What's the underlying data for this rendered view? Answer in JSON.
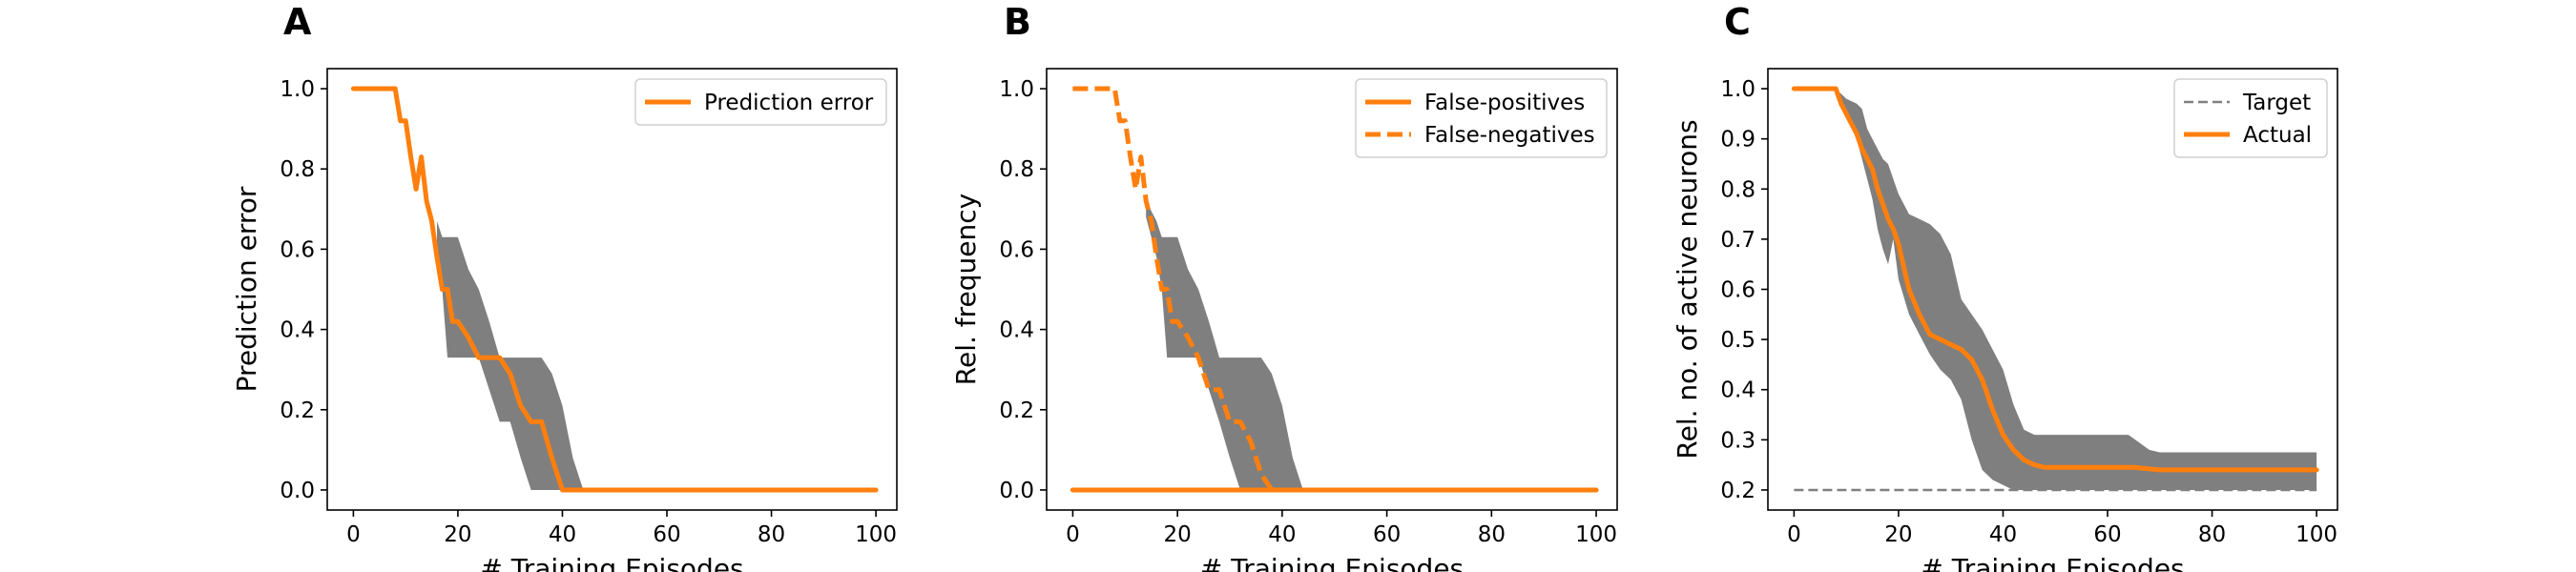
{
  "colors": {
    "accent": "#ff7f0e",
    "band": "#7f7f7f",
    "target": "#808080",
    "axis": "#000000"
  },
  "chart_data": [
    {
      "type": "line",
      "panel": "A",
      "xlabel": "# Training Episodes",
      "ylabel": "Prediction error",
      "xlim": [
        -5,
        104
      ],
      "ylim": [
        -0.05,
        1.05
      ],
      "xticks": [
        "0",
        "20",
        "40",
        "60",
        "80",
        "100"
      ],
      "yticks": [
        "0.0",
        "0.2",
        "0.4",
        "0.6",
        "0.8",
        "1.0"
      ],
      "legend": "top-right",
      "series": [
        {
          "name": "Prediction error",
          "style": "solid",
          "color": "#ff7f0e",
          "x": [
            0,
            8,
            9,
            10,
            11,
            12,
            13,
            14,
            15,
            16,
            17,
            18,
            19,
            20,
            22,
            24,
            26,
            28,
            30,
            32,
            34,
            36,
            38,
            40,
            100
          ],
          "y": [
            1.0,
            1.0,
            0.92,
            0.92,
            0.83,
            0.75,
            0.83,
            0.72,
            0.67,
            0.58,
            0.5,
            0.5,
            0.42,
            0.42,
            0.38,
            0.33,
            0.33,
            0.33,
            0.29,
            0.21,
            0.17,
            0.17,
            0.08,
            0.0,
            0.0
          ]
        }
      ],
      "band": {
        "x": [
          16,
          17,
          18,
          20,
          22,
          24,
          26,
          28,
          30,
          32,
          34,
          36,
          38,
          40,
          42,
          44
        ],
        "upper": [
          0.67,
          0.63,
          0.63,
          0.63,
          0.55,
          0.5,
          0.42,
          0.33,
          0.33,
          0.33,
          0.33,
          0.33,
          0.29,
          0.21,
          0.08,
          0.0
        ],
        "lower": [
          0.58,
          0.5,
          0.33,
          0.33,
          0.33,
          0.33,
          0.25,
          0.17,
          0.17,
          0.08,
          0.0,
          0.0,
          0.0,
          0.0,
          0.0,
          0.0
        ]
      }
    },
    {
      "type": "line",
      "panel": "B",
      "xlabel": "# Training Episodes",
      "ylabel": "Rel. frequency",
      "xlim": [
        -5,
        104
      ],
      "ylim": [
        -0.05,
        1.05
      ],
      "xticks": [
        "0",
        "20",
        "40",
        "60",
        "80",
        "100"
      ],
      "yticks": [
        "0.0",
        "0.2",
        "0.4",
        "0.6",
        "0.8",
        "1.0"
      ],
      "legend": "top-right",
      "series": [
        {
          "name": "False-positives",
          "style": "solid",
          "color": "#ff7f0e",
          "x": [
            0,
            100
          ],
          "y": [
            0.0,
            0.0
          ]
        },
        {
          "name": "False-negatives",
          "style": "dashed",
          "color": "#ff7f0e",
          "x": [
            0,
            7,
            8,
            9,
            10,
            11,
            12,
            13,
            14,
            15,
            16,
            17,
            18,
            19,
            20,
            22,
            24,
            26,
            28,
            30,
            32,
            34,
            36,
            38,
            40,
            100
          ],
          "y": [
            1.0,
            1.0,
            1.0,
            0.92,
            0.92,
            0.83,
            0.75,
            0.83,
            0.72,
            0.67,
            0.58,
            0.5,
            0.5,
            0.42,
            0.42,
            0.38,
            0.33,
            0.25,
            0.25,
            0.17,
            0.17,
            0.12,
            0.04,
            0.0,
            0.0,
            0.0
          ]
        }
      ],
      "band": {
        "x": [
          14,
          16,
          17,
          18,
          20,
          22,
          24,
          26,
          28,
          30,
          32,
          34,
          36,
          38,
          40,
          42,
          44
        ],
        "upper": [
          0.72,
          0.67,
          0.63,
          0.63,
          0.63,
          0.55,
          0.5,
          0.42,
          0.33,
          0.33,
          0.33,
          0.33,
          0.33,
          0.29,
          0.21,
          0.08,
          0.0
        ],
        "lower": [
          0.68,
          0.58,
          0.5,
          0.33,
          0.33,
          0.33,
          0.33,
          0.25,
          0.17,
          0.08,
          0.0,
          0.0,
          0.0,
          0.0,
          0.0,
          0.0,
          0.0
        ]
      }
    },
    {
      "type": "line",
      "panel": "C",
      "xlabel": "# Training Episodes",
      "ylabel": "Rel. no. of active neurons",
      "xlim": [
        -5,
        104
      ],
      "ylim": [
        0.16,
        1.04
      ],
      "xticks": [
        "0",
        "20",
        "40",
        "60",
        "80",
        "100"
      ],
      "yticks": [
        "0.2",
        "0.3",
        "0.4",
        "0.5",
        "0.6",
        "0.7",
        "0.8",
        "0.9",
        "1.0"
      ],
      "legend": "top-right",
      "series": [
        {
          "name": "Target",
          "style": "dashed-thin",
          "color": "#808080",
          "x": [
            0,
            100
          ],
          "y": [
            0.2,
            0.2
          ]
        },
        {
          "name": "Actual",
          "style": "solid",
          "color": "#ff7f0e",
          "x": [
            0,
            8,
            9,
            10,
            11,
            12,
            13,
            14,
            15,
            16,
            17,
            18,
            19,
            20,
            22,
            24,
            26,
            28,
            30,
            32,
            34,
            36,
            38,
            40,
            42,
            44,
            46,
            48,
            50,
            55,
            60,
            65,
            70,
            75,
            80,
            85,
            90,
            95,
            100
          ],
          "y": [
            1.0,
            1.0,
            0.97,
            0.95,
            0.93,
            0.91,
            0.88,
            0.86,
            0.84,
            0.8,
            0.77,
            0.74,
            0.72,
            0.69,
            0.6,
            0.55,
            0.51,
            0.5,
            0.49,
            0.48,
            0.46,
            0.42,
            0.36,
            0.31,
            0.28,
            0.26,
            0.25,
            0.245,
            0.245,
            0.245,
            0.245,
            0.245,
            0.24,
            0.24,
            0.24,
            0.24,
            0.24,
            0.24,
            0.24
          ]
        }
      ],
      "band": {
        "x": [
          8,
          10,
          12,
          13,
          14,
          15,
          16,
          17,
          18,
          19,
          20,
          22,
          24,
          26,
          28,
          30,
          32,
          34,
          36,
          38,
          40,
          42,
          44,
          46,
          48,
          50,
          55,
          60,
          64,
          68,
          70,
          75,
          80,
          85,
          90,
          95,
          100
        ],
        "upper": [
          1.0,
          0.98,
          0.97,
          0.96,
          0.92,
          0.9,
          0.88,
          0.86,
          0.85,
          0.82,
          0.79,
          0.75,
          0.74,
          0.73,
          0.71,
          0.67,
          0.58,
          0.55,
          0.52,
          0.48,
          0.44,
          0.37,
          0.32,
          0.31,
          0.31,
          0.31,
          0.31,
          0.31,
          0.31,
          0.28,
          0.275,
          0.275,
          0.275,
          0.275,
          0.275,
          0.275,
          0.275
        ],
        "lower": [
          1.0,
          0.95,
          0.9,
          0.86,
          0.82,
          0.78,
          0.72,
          0.68,
          0.65,
          0.7,
          0.62,
          0.55,
          0.51,
          0.47,
          0.44,
          0.42,
          0.38,
          0.3,
          0.24,
          0.22,
          0.21,
          0.2,
          0.2,
          0.2,
          0.2,
          0.2,
          0.2,
          0.2,
          0.2,
          0.2,
          0.2,
          0.2,
          0.2,
          0.2,
          0.2,
          0.2,
          0.2
        ]
      }
    }
  ]
}
